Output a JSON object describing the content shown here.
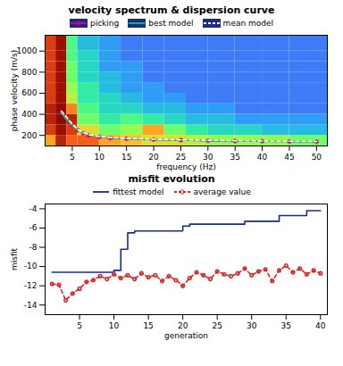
{
  "chart_data": [
    {
      "type": "heatmap",
      "title": "velocity spectrum & dispersion curve",
      "x_label": "frequency (Hz)",
      "y_label": "phase velocity (m/s)",
      "xlim": [
        0,
        52
      ],
      "ylim": [
        100,
        1150
      ],
      "xticks": [
        5,
        10,
        15,
        20,
        25,
        30,
        35,
        40,
        45,
        50
      ],
      "yticks": [
        200,
        400,
        600,
        800,
        1000
      ],
      "legend": "top",
      "spectrum": {
        "f_bins": [
          0,
          2,
          4,
          6,
          10,
          14,
          18,
          22,
          26,
          30,
          35,
          40,
          45,
          52
        ],
        "v_bins": [
          100,
          200,
          300,
          400,
          500,
          600,
          700,
          800,
          900,
          1000,
          1150
        ],
        "color_range": [
          0,
          1
        ],
        "values": [
          [
            0.7,
            0.9,
            0.8,
            0.8,
            0.7,
            0.65,
            0.6,
            0.6,
            0.55,
            0.5,
            0.5,
            0.5,
            0.45
          ],
          [
            0.85,
            0.95,
            0.85,
            0.6,
            0.45,
            0.5,
            0.7,
            0.45,
            0.35,
            0.3,
            0.3,
            0.25,
            0.25
          ],
          [
            0.9,
            1.0,
            0.9,
            0.45,
            0.35,
            0.4,
            0.35,
            0.3,
            0.25,
            0.25,
            0.2,
            0.2,
            0.2
          ],
          [
            0.9,
            1.0,
            0.75,
            0.4,
            0.3,
            0.3,
            0.25,
            0.25,
            0.2,
            0.2,
            0.15,
            0.15,
            0.15
          ],
          [
            0.85,
            0.95,
            0.55,
            0.35,
            0.3,
            0.25,
            0.2,
            0.2,
            0.15,
            0.15,
            0.15,
            0.15,
            0.15
          ],
          [
            0.85,
            0.95,
            0.5,
            0.35,
            0.25,
            0.2,
            0.2,
            0.15,
            0.15,
            0.15,
            0.15,
            0.15,
            0.15
          ],
          [
            0.85,
            0.95,
            0.45,
            0.3,
            0.25,
            0.2,
            0.15,
            0.15,
            0.15,
            0.15,
            0.15,
            0.15,
            0.15
          ],
          [
            0.85,
            0.95,
            0.45,
            0.3,
            0.2,
            0.2,
            0.15,
            0.15,
            0.15,
            0.15,
            0.15,
            0.15,
            0.15
          ],
          [
            0.85,
            0.95,
            0.4,
            0.3,
            0.2,
            0.15,
            0.15,
            0.15,
            0.15,
            0.15,
            0.15,
            0.15,
            0.15
          ],
          [
            0.85,
            0.95,
            0.4,
            0.25,
            0.2,
            0.15,
            0.15,
            0.15,
            0.15,
            0.15,
            0.15,
            0.15,
            0.15
          ]
        ]
      },
      "series": [
        {
          "name": "picking",
          "type": "line",
          "color": "#e0007a",
          "marker": "*",
          "x": [
            3,
            4,
            5,
            6,
            7,
            8,
            10,
            12,
            15,
            20,
            25,
            30,
            35,
            40,
            45,
            50
          ],
          "values": [
            420,
            360,
            300,
            250,
            220,
            200,
            185,
            175,
            168,
            160,
            155,
            150,
            147,
            145,
            142,
            140
          ]
        },
        {
          "name": "best model",
          "type": "line",
          "color": "#00d060",
          "line_style": "solid",
          "x": [
            3,
            4,
            5,
            6,
            7,
            8,
            10,
            12,
            15,
            20,
            25,
            30,
            35,
            40,
            45,
            50
          ],
          "values": [
            410,
            350,
            295,
            248,
            222,
            205,
            188,
            178,
            170,
            162,
            156,
            152,
            149,
            146,
            144,
            142
          ]
        },
        {
          "name": "mean model",
          "type": "line",
          "color": "#ffffff",
          "line_style": "dashed",
          "x": [
            3,
            4,
            5,
            6,
            7,
            8,
            10,
            12,
            15,
            20,
            25,
            30,
            35,
            40,
            45,
            50
          ],
          "values": [
            430,
            370,
            310,
            258,
            228,
            208,
            190,
            180,
            172,
            164,
            158,
            154,
            150,
            147,
            145,
            143
          ]
        }
      ]
    },
    {
      "type": "line",
      "title": "misfit evolution",
      "x_label": "generation",
      "y_label": "misfit",
      "xlim": [
        0,
        41
      ],
      "ylim": [
        -15,
        -3.5
      ],
      "xticks": [
        5,
        10,
        15,
        20,
        25,
        30,
        35,
        40
      ],
      "yticks": [
        -14,
        -12,
        -10,
        -8,
        -6,
        -4
      ],
      "grid": false,
      "legend": "top",
      "x": [
        1,
        2,
        3,
        4,
        5,
        6,
        7,
        8,
        9,
        10,
        11,
        12,
        13,
        14,
        15,
        16,
        17,
        18,
        19,
        20,
        21,
        22,
        23,
        24,
        25,
        26,
        27,
        28,
        29,
        30,
        31,
        32,
        33,
        34,
        35,
        36,
        37,
        38,
        39,
        40
      ],
      "series": [
        {
          "name": "fittest model",
          "color": "#1a2a8a",
          "line_style": "solid",
          "values": [
            -10.6,
            -10.6,
            -10.6,
            -10.6,
            -10.6,
            -10.6,
            -10.6,
            -10.6,
            -10.6,
            -10.4,
            -8.2,
            -6.5,
            -6.3,
            -6.3,
            -6.3,
            -6.3,
            -6.3,
            -6.3,
            -6.3,
            -5.8,
            -5.6,
            -5.6,
            -5.6,
            -5.6,
            -5.6,
            -5.6,
            -5.6,
            -5.6,
            -5.3,
            -5.3,
            -5.3,
            -5.3,
            -5.3,
            -4.7,
            -4.7,
            -4.7,
            -4.7,
            -4.2,
            -4.2,
            -4.2
          ]
        },
        {
          "name": "average value",
          "color": "#d62728",
          "line_style": "dashed",
          "marker": "o",
          "values": [
            -11.8,
            -11.9,
            -13.5,
            -12.8,
            -12.3,
            -11.6,
            -11.4,
            -11.0,
            -11.3,
            -10.8,
            -11.2,
            -10.9,
            -11.3,
            -10.7,
            -11.1,
            -10.9,
            -11.5,
            -11.0,
            -11.4,
            -12.0,
            -11.2,
            -10.6,
            -10.9,
            -11.3,
            -10.5,
            -10.8,
            -11.0,
            -10.7,
            -10.2,
            -10.9,
            -10.5,
            -10.3,
            -11.5,
            -10.4,
            -9.9,
            -10.6,
            -10.2,
            -10.8,
            -10.4,
            -10.7
          ]
        }
      ]
    }
  ]
}
